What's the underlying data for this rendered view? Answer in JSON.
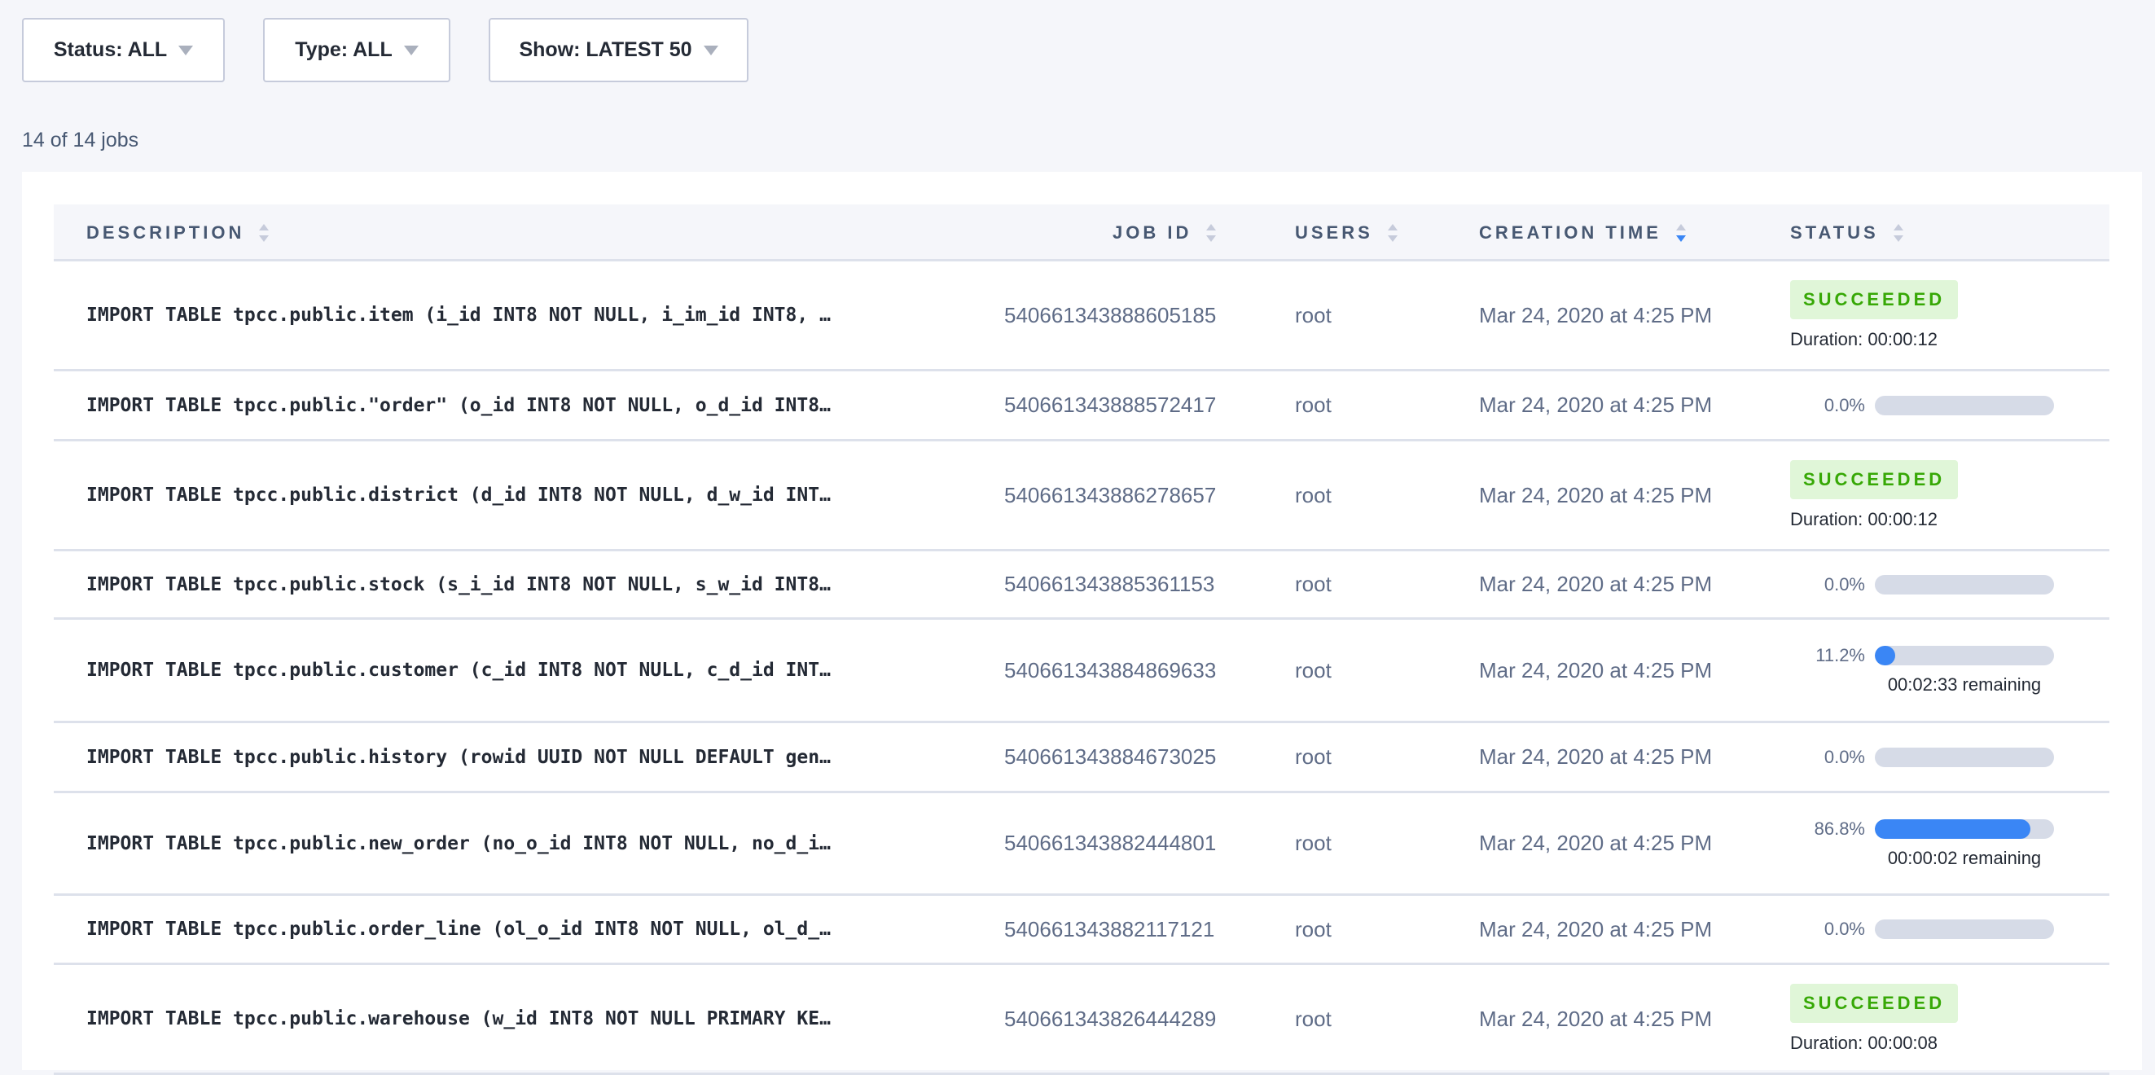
{
  "filters": {
    "status": "Status: ALL",
    "type": "Type: ALL",
    "show": "Show: LATEST 50"
  },
  "job_count": "14 of 14 jobs",
  "colors": {
    "accent": "#3a86f5",
    "success_bg": "#e0f6d8",
    "success_text": "#37a806"
  },
  "table": {
    "headers": {
      "description": "DESCRIPTION",
      "job_id": "JOB ID",
      "users": "USERS",
      "creation_time": "CREATION TIME",
      "status": "STATUS"
    },
    "sorted_by": "creation_time",
    "sort_direction": "descending",
    "rows": [
      {
        "description": "IMPORT TABLE tpcc.public.item (i_id INT8 NOT NULL, i_im_id INT8, …",
        "job_id": "540661343888605185",
        "user": "root",
        "created": "Mar 24, 2020 at 4:25 PM",
        "status": "SUCCEEDED",
        "duration": "Duration: 00:00:12"
      },
      {
        "description": "IMPORT TABLE tpcc.public.\"order\" (o_id INT8 NOT NULL, o_d_id INT8…",
        "job_id": "540661343888572417",
        "user": "root",
        "created": "Mar 24, 2020 at 4:25 PM",
        "progress": 0.0,
        "progress_label": "0.0%"
      },
      {
        "description": "IMPORT TABLE tpcc.public.district (d_id INT8 NOT NULL, d_w_id INT…",
        "job_id": "540661343886278657",
        "user": "root",
        "created": "Mar 24, 2020 at 4:25 PM",
        "status": "SUCCEEDED",
        "duration": "Duration: 00:00:12"
      },
      {
        "description": "IMPORT TABLE tpcc.public.stock (s_i_id INT8 NOT NULL, s_w_id INT8…",
        "job_id": "540661343885361153",
        "user": "root",
        "created": "Mar 24, 2020 at 4:25 PM",
        "progress": 0.0,
        "progress_label": "0.0%"
      },
      {
        "description": "IMPORT TABLE tpcc.public.customer (c_id INT8 NOT NULL, c_d_id INT…",
        "job_id": "540661343884869633",
        "user": "root",
        "created": "Mar 24, 2020 at 4:25 PM",
        "progress": 11.2,
        "progress_label": "11.2%",
        "remaining": "00:02:33 remaining"
      },
      {
        "description": "IMPORT TABLE tpcc.public.history (rowid UUID NOT NULL DEFAULT gen…",
        "job_id": "540661343884673025",
        "user": "root",
        "created": "Mar 24, 2020 at 4:25 PM",
        "progress": 0.0,
        "progress_label": "0.0%"
      },
      {
        "description": "IMPORT TABLE tpcc.public.new_order (no_o_id INT8 NOT NULL, no_d_i…",
        "job_id": "540661343882444801",
        "user": "root",
        "created": "Mar 24, 2020 at 4:25 PM",
        "progress": 86.8,
        "progress_label": "86.8%",
        "remaining": "00:00:02 remaining"
      },
      {
        "description": "IMPORT TABLE tpcc.public.order_line (ol_o_id INT8 NOT NULL, ol_d_…",
        "job_id": "540661343882117121",
        "user": "root",
        "created": "Mar 24, 2020 at 4:25 PM",
        "progress": 0.0,
        "progress_label": "0.0%"
      },
      {
        "description": "IMPORT TABLE tpcc.public.warehouse (w_id INT8 NOT NULL PRIMARY KE…",
        "job_id": "540661343826444289",
        "user": "root",
        "created": "Mar 24, 2020 at 4:25 PM",
        "status": "SUCCEEDED",
        "duration": "Duration: 00:00:08"
      }
    ]
  }
}
